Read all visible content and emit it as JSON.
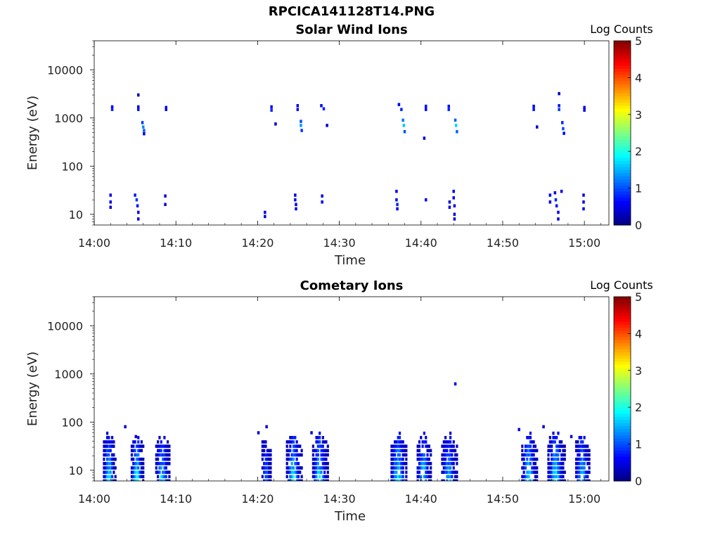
{
  "figure_title": "RPCICA141128T14.PNG",
  "chart_data": [
    {
      "type": "heatmap",
      "title": "Solar Wind Ions",
      "xlabel": "Time",
      "ylabel": "Energy (eV)",
      "x_scale": "time",
      "y_scale": "log",
      "xlim": [
        "14:00",
        "15:03"
      ],
      "ylim": [
        6,
        40000
      ],
      "x_ticks": [
        "14:00",
        "14:10",
        "14:20",
        "14:30",
        "14:40",
        "14:50",
        "15:00"
      ],
      "y_ticks": [
        "10",
        "100",
        "1000",
        "10000"
      ],
      "colorbar": {
        "label": "Log Counts",
        "range": [
          0,
          5
        ],
        "ticks": [
          "0",
          "1",
          "2",
          "3",
          "4",
          "5"
        ],
        "colormap": "jet"
      },
      "grid": false,
      "cells": [
        {
          "t": "14:02.2",
          "e": 1700,
          "v": 0.6
        },
        {
          "t": "14:02.2",
          "e": 1500,
          "v": 0.8
        },
        {
          "t": "14:05.4",
          "e": 3000,
          "v": 0.3
        },
        {
          "t": "14:05.4",
          "e": 1700,
          "v": 0.5
        },
        {
          "t": "14:05.4",
          "e": 1500,
          "v": 0.7
        },
        {
          "t": "14:05.9",
          "e": 800,
          "v": 0.9
        },
        {
          "t": "14:06.0",
          "e": 650,
          "v": 1.3
        },
        {
          "t": "14:06.1",
          "e": 550,
          "v": 1.1
        },
        {
          "t": "14:06.1",
          "e": 470,
          "v": 0.6
        },
        {
          "t": "14:08.8",
          "e": 1650,
          "v": 0.6
        },
        {
          "t": "14:08.8",
          "e": 1500,
          "v": 0.5
        },
        {
          "t": "14:21.7",
          "e": 1700,
          "v": 0.6
        },
        {
          "t": "14:21.7",
          "e": 1450,
          "v": 0.8
        },
        {
          "t": "14:22.2",
          "e": 750,
          "v": 0.4
        },
        {
          "t": "14:24.9",
          "e": 1800,
          "v": 0.6
        },
        {
          "t": "14:24.9",
          "e": 1500,
          "v": 0.7
        },
        {
          "t": "14:25.3",
          "e": 850,
          "v": 1.0
        },
        {
          "t": "14:25.3",
          "e": 700,
          "v": 1.4
        },
        {
          "t": "14:25.4",
          "e": 550,
          "v": 0.9
        },
        {
          "t": "14:27.8",
          "e": 1800,
          "v": 0.6
        },
        {
          "t": "14:28.1",
          "e": 1550,
          "v": 0.8
        },
        {
          "t": "14:28.5",
          "e": 700,
          "v": 0.4
        },
        {
          "t": "14:37.3",
          "e": 1900,
          "v": 0.6
        },
        {
          "t": "14:37.6",
          "e": 1500,
          "v": 0.8
        },
        {
          "t": "14:37.8",
          "e": 900,
          "v": 1.2
        },
        {
          "t": "14:37.9",
          "e": 700,
          "v": 1.6
        },
        {
          "t": "14:38.0",
          "e": 520,
          "v": 1.0
        },
        {
          "t": "14:40.6",
          "e": 1750,
          "v": 0.7
        },
        {
          "t": "14:40.6",
          "e": 1500,
          "v": 0.6
        },
        {
          "t": "14:40.4",
          "e": 380,
          "v": 0.4
        },
        {
          "t": "14:43.4",
          "e": 1750,
          "v": 0.7
        },
        {
          "t": "14:43.4",
          "e": 1500,
          "v": 0.8
        },
        {
          "t": "14:44.2",
          "e": 900,
          "v": 1.1
        },
        {
          "t": "14:44.3",
          "e": 700,
          "v": 1.7
        },
        {
          "t": "14:44.4",
          "e": 520,
          "v": 1.1
        },
        {
          "t": "14:53.8",
          "e": 1750,
          "v": 0.6
        },
        {
          "t": "14:53.8",
          "e": 1500,
          "v": 0.7
        },
        {
          "t": "14:54.2",
          "e": 650,
          "v": 0.4
        },
        {
          "t": "14:56.9",
          "e": 3200,
          "v": 0.3
        },
        {
          "t": "14:56.9",
          "e": 1800,
          "v": 0.7
        },
        {
          "t": "14:56.9",
          "e": 1500,
          "v": 0.9
        },
        {
          "t": "14:57.3",
          "e": 800,
          "v": 0.8
        },
        {
          "t": "14:57.4",
          "e": 600,
          "v": 1.0
        },
        {
          "t": "14:57.5",
          "e": 480,
          "v": 0.6
        },
        {
          "t": "15:00.0",
          "e": 1650,
          "v": 0.5
        },
        {
          "t": "15:00.0",
          "e": 1450,
          "v": 0.6
        },
        {
          "t": "14:02.0",
          "e": 25,
          "v": 0.6
        },
        {
          "t": "14:02.0",
          "e": 18,
          "v": 0.6
        },
        {
          "t": "14:02.0",
          "e": 14,
          "v": 0.5
        },
        {
          "t": "14:05.0",
          "e": 25,
          "v": 0.7
        },
        {
          "t": "14:05.2",
          "e": 20,
          "v": 0.9
        },
        {
          "t": "14:05.3",
          "e": 15,
          "v": 0.7
        },
        {
          "t": "14:05.4",
          "e": 11,
          "v": 0.6
        },
        {
          "t": "14:05.4",
          "e": 8,
          "v": 0.5
        },
        {
          "t": "14:08.7",
          "e": 24,
          "v": 0.5
        },
        {
          "t": "14:08.7",
          "e": 16,
          "v": 0.5
        },
        {
          "t": "14:20.9",
          "e": 11,
          "v": 0.5
        },
        {
          "t": "14:20.9",
          "e": 9,
          "v": 0.5
        },
        {
          "t": "14:24.6",
          "e": 25,
          "v": 0.5
        },
        {
          "t": "14:24.6",
          "e": 20,
          "v": 0.7
        },
        {
          "t": "14:24.7",
          "e": 16,
          "v": 0.6
        },
        {
          "t": "14:24.7",
          "e": 13,
          "v": 0.5
        },
        {
          "t": "14:27.9",
          "e": 24,
          "v": 0.5
        },
        {
          "t": "14:27.9",
          "e": 18,
          "v": 0.6
        },
        {
          "t": "14:37.0",
          "e": 30,
          "v": 0.5
        },
        {
          "t": "14:37.0",
          "e": 20,
          "v": 0.7
        },
        {
          "t": "14:37.1",
          "e": 16,
          "v": 0.8
        },
        {
          "t": "14:37.1",
          "e": 13,
          "v": 0.5
        },
        {
          "t": "14:40.6",
          "e": 20,
          "v": 0.6
        },
        {
          "t": "14:43.5",
          "e": 18,
          "v": 0.5
        },
        {
          "t": "14:43.5",
          "e": 14,
          "v": 0.5
        },
        {
          "t": "14:44.0",
          "e": 30,
          "v": 0.5
        },
        {
          "t": "14:44.0",
          "e": 22,
          "v": 0.6
        },
        {
          "t": "14:44.1",
          "e": 15,
          "v": 0.5
        },
        {
          "t": "14:44.1",
          "e": 10,
          "v": 0.5
        },
        {
          "t": "14:44.1",
          "e": 8,
          "v": 0.5
        },
        {
          "t": "14:55.8",
          "e": 25,
          "v": 0.5
        },
        {
          "t": "14:55.8",
          "e": 18,
          "v": 0.5
        },
        {
          "t": "14:56.4",
          "e": 28,
          "v": 0.6
        },
        {
          "t": "14:56.5",
          "e": 20,
          "v": 0.8
        },
        {
          "t": "14:56.6",
          "e": 15,
          "v": 0.7
        },
        {
          "t": "14:56.8",
          "e": 11,
          "v": 0.6
        },
        {
          "t": "14:56.8",
          "e": 8,
          "v": 0.5
        },
        {
          "t": "14:57.2",
          "e": 30,
          "v": 0.5
        },
        {
          "t": "14:59.9",
          "e": 25,
          "v": 0.5
        },
        {
          "t": "14:59.9",
          "e": 18,
          "v": 0.5
        },
        {
          "t": "14:59.9",
          "e": 13,
          "v": 0.5
        }
      ]
    },
    {
      "type": "heatmap",
      "title": "Cometary Ions",
      "xlabel": "Time",
      "ylabel": "Energy (eV)",
      "x_scale": "time",
      "y_scale": "log",
      "xlim": [
        "14:00",
        "15:03"
      ],
      "ylim": [
        6,
        40000
      ],
      "x_ticks": [
        "14:00",
        "14:10",
        "14:20",
        "14:30",
        "14:40",
        "14:50",
        "15:00"
      ],
      "y_ticks": [
        "10",
        "100",
        "1000",
        "10000"
      ],
      "colorbar": {
        "label": "Log Counts",
        "range": [
          0,
          5
        ],
        "ticks": [
          "0",
          "1",
          "2",
          "3",
          "4",
          "5"
        ],
        "colormap": "jet"
      },
      "grid": false,
      "bursts": [
        {
          "t0": "14:01.2",
          "t1": "14:02.6",
          "peak": 1.9
        },
        {
          "t0": "14:04.6",
          "t1": "14:06.0",
          "peak": 2.0
        },
        {
          "t0": "14:07.6",
          "t1": "14:09.2",
          "peak": 1.8
        },
        {
          "t0": "14:20.6",
          "t1": "14:21.6",
          "peak": 1.3
        },
        {
          "t0": "14:23.6",
          "t1": "14:25.4",
          "peak": 1.9
        },
        {
          "t0": "14:26.8",
          "t1": "14:28.6",
          "peak": 1.9
        },
        {
          "t0": "14:36.4",
          "t1": "14:38.2",
          "peak": 2.0
        },
        {
          "t0": "14:39.6",
          "t1": "14:41.2",
          "peak": 1.8
        },
        {
          "t0": "14:42.6",
          "t1": "14:44.4",
          "peak": 1.6
        },
        {
          "t0": "14:52.4",
          "t1": "14:54.2",
          "peak": 1.9
        },
        {
          "t0": "14:55.6",
          "t1": "14:57.6",
          "peak": 1.9
        },
        {
          "t0": "14:59.0",
          "t1": "15:00.6",
          "peak": 1.9
        }
      ],
      "cells": [
        {
          "t": "14:03.8",
          "e": 80,
          "v": 0.4
        },
        {
          "t": "14:05.1",
          "e": 50,
          "v": 0.4
        },
        {
          "t": "14:20.1",
          "e": 60,
          "v": 0.4
        },
        {
          "t": "14:21.1",
          "e": 80,
          "v": 0.4
        },
        {
          "t": "14:26.6",
          "e": 60,
          "v": 0.4
        },
        {
          "t": "14:44.2",
          "e": 620,
          "v": 0.5
        },
        {
          "t": "14:52.0",
          "e": 70,
          "v": 0.5
        },
        {
          "t": "14:55.0",
          "e": 80,
          "v": 0.4
        },
        {
          "t": "14:58.4",
          "e": 50,
          "v": 0.4
        }
      ]
    }
  ]
}
